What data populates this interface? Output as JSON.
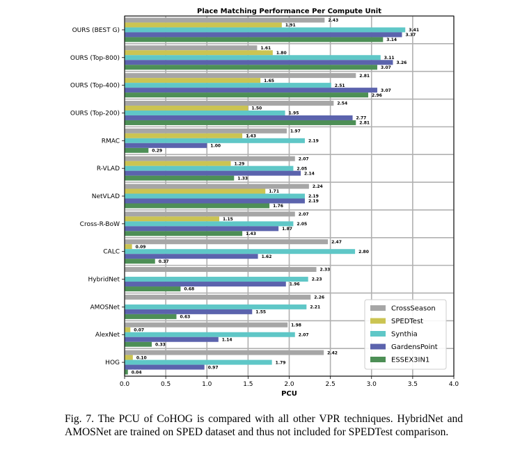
{
  "caption": "Fig. 7.    The PCU of CoHOG is compared with all other VPR techniques. HybridNet and AMOSNet are trained on SPED dataset and thus not included for SPEDTest comparison.",
  "chart_data": {
    "type": "bar",
    "orientation": "horizontal",
    "title": "Place Matching Performance Per Compute Unit",
    "xlabel": "PCU",
    "ylabel": "",
    "xlim": [
      0,
      4
    ],
    "xticks": [
      "0.0",
      "0.5",
      "1.0",
      "1.5",
      "2.0",
      "2.5",
      "3.0",
      "3.5",
      "4.0"
    ],
    "grid": true,
    "legend_position": "lower-right",
    "categories": [
      "OURS (BEST G)",
      "OURS (Top-800)",
      "OURS (Top-400)",
      "OURS (Top-200)",
      "RMAC",
      "R-VLAD",
      "NetVLAD",
      "Cross-R-BoW",
      "CALC",
      "HybridNet",
      "AMOSNet",
      "AlexNet",
      "HOG"
    ],
    "series": [
      {
        "name": "CrossSeason",
        "color": "#a6a6a6",
        "values": [
          2.43,
          1.61,
          2.81,
          2.54,
          1.97,
          2.07,
          2.24,
          2.07,
          2.47,
          2.33,
          2.26,
          1.98,
          2.42
        ]
      },
      {
        "name": "SPEDTest",
        "color": "#cbc452",
        "values": [
          1.91,
          1.8,
          1.65,
          1.5,
          1.43,
          1.29,
          1.71,
          1.15,
          0.09,
          null,
          null,
          0.07,
          0.1
        ]
      },
      {
        "name": "Synthia",
        "color": "#5fc7c7",
        "values": [
          3.41,
          3.11,
          2.51,
          1.95,
          2.19,
          2.05,
          2.19,
          2.05,
          2.8,
          2.23,
          2.21,
          2.07,
          1.79
        ]
      },
      {
        "name": "GardensPoint",
        "color": "#5b63ad",
        "values": [
          3.37,
          3.26,
          3.07,
          2.77,
          1.0,
          2.14,
          2.19,
          1.87,
          1.62,
          1.96,
          1.55,
          1.14,
          0.97
        ]
      },
      {
        "name": "ESSEX3IN1",
        "color": "#4d8f56",
        "values": [
          3.14,
          3.07,
          2.96,
          2.81,
          0.29,
          1.33,
          1.76,
          1.43,
          0.37,
          0.68,
          0.63,
          0.33,
          0.04
        ]
      }
    ]
  }
}
